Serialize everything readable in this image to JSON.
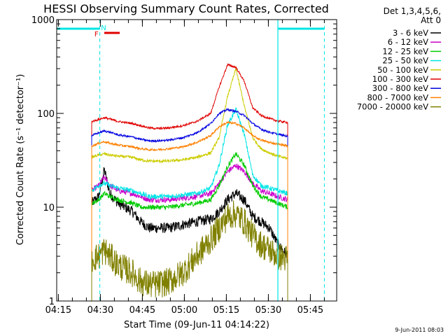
{
  "chart_data": {
    "type": "line",
    "title": "HESSI Observing Summary Count Rates, Corrected",
    "xlabel": "Start Time (09-Jun-11 04:14:22)",
    "ylabel": "Corrected Count Rate (s⁻¹ detector⁻¹)",
    "yscale": "log",
    "ylim": [
      1,
      1000
    ],
    "xlim_minutes": [
      0,
      100
    ],
    "x_tick_labels": [
      "04:15",
      "04:30",
      "04:45",
      "05:00",
      "05:15",
      "05:30",
      "05:45"
    ],
    "x_tick_minutes": [
      0.6,
      15.6,
      30.6,
      45.6,
      60.6,
      75.6,
      90.6
    ],
    "y_tick_labels": [
      "1",
      "10",
      "100",
      "1000"
    ],
    "y_tick_values": [
      1,
      10,
      100,
      1000
    ],
    "legend_header": [
      "Det 1,3,4,5,6,",
      "Att 0"
    ],
    "legend_position": "outside-right",
    "footer_timestamp": "9-Jun-2011 08:03",
    "x_unit": "minutes after 04:14:22",
    "data_start": 12.5,
    "data_end": 82.5,
    "series": [
      {
        "name": "3 - 6 keV",
        "color": "#000000",
        "x": [
          12.5,
          15,
          17,
          19,
          22,
          27,
          30,
          33,
          36,
          40,
          45,
          50,
          55,
          58,
          61,
          64,
          67,
          70,
          73,
          76,
          79,
          82.5
        ],
        "y": [
          11,
          13,
          25,
          14,
          11,
          9,
          7,
          6,
          6,
          6,
          6.5,
          7,
          7.5,
          9,
          12,
          14,
          12,
          8,
          7,
          6,
          4,
          3
        ]
      },
      {
        "name": "6 - 12 keV",
        "color": "#cc00cc",
        "x": [
          12.5,
          15,
          17,
          19,
          22,
          27,
          30,
          33,
          36,
          40,
          45,
          50,
          55,
          58,
          61,
          64,
          67,
          70,
          73,
          76,
          79,
          82.5
        ],
        "y": [
          15,
          17,
          21,
          17,
          15,
          14,
          13,
          12,
          12,
          12,
          12.5,
          13,
          14,
          18,
          24,
          28,
          24,
          18,
          15,
          14,
          13,
          12
        ]
      },
      {
        "name": "12 - 25 keV",
        "color": "#00cc00",
        "x": [
          12.5,
          15,
          17,
          19,
          22,
          27,
          30,
          33,
          36,
          40,
          45,
          50,
          55,
          58,
          61,
          64,
          67,
          70,
          73,
          76,
          79,
          82.5
        ],
        "y": [
          11,
          12,
          14,
          13,
          12,
          11,
          10,
          10,
          10,
          10,
          10.5,
          11,
          12,
          17,
          27,
          37,
          28,
          17,
          13,
          12,
          11,
          10
        ]
      },
      {
        "name": "25 - 50 keV",
        "color": "#00e5e5",
        "x": [
          12.5,
          15,
          17,
          19,
          22,
          27,
          30,
          33,
          36,
          40,
          45,
          50,
          55,
          58,
          61,
          64,
          67,
          70,
          73,
          76,
          79,
          82.5
        ],
        "y": [
          15,
          17,
          18,
          17,
          16,
          15,
          14,
          13,
          13,
          13,
          13.5,
          14,
          16,
          28,
          75,
          110,
          60,
          22,
          17,
          16,
          15,
          14
        ]
      },
      {
        "name": "50 - 100 keV",
        "color": "#cccc00",
        "x": [
          12.5,
          15,
          17,
          19,
          22,
          27,
          30,
          33,
          36,
          40,
          45,
          50,
          55,
          58,
          61,
          64,
          67,
          70,
          73,
          76,
          79,
          82.5
        ],
        "y": [
          34,
          36,
          37,
          36,
          35,
          34,
          32,
          31,
          31,
          31,
          32,
          34,
          38,
          55,
          150,
          300,
          120,
          55,
          42,
          38,
          35,
          33
        ]
      },
      {
        "name": "100 - 300 keV",
        "color": "#e00000",
        "x": [
          12.5,
          15,
          17,
          19,
          22,
          27,
          30,
          33,
          36,
          40,
          45,
          50,
          55,
          58,
          61,
          64,
          67,
          70,
          73,
          76,
          79,
          82.5
        ],
        "y": [
          82,
          86,
          90,
          87,
          82,
          78,
          74,
          70,
          69,
          70,
          74,
          82,
          100,
          190,
          330,
          310,
          220,
          115,
          95,
          88,
          83,
          80
        ]
      },
      {
        "name": "300 - 800 keV",
        "color": "#0000e0",
        "x": [
          12.5,
          15,
          17,
          19,
          22,
          27,
          30,
          33,
          36,
          40,
          45,
          50,
          55,
          58,
          61,
          64,
          67,
          70,
          73,
          76,
          79,
          82.5
        ],
        "y": [
          58,
          62,
          65,
          63,
          59,
          56,
          53,
          51,
          51,
          52,
          55,
          62,
          78,
          100,
          110,
          105,
          95,
          78,
          68,
          63,
          60,
          57
        ]
      },
      {
        "name": "800 - 7000 keV",
        "color": "#ff8000",
        "x": [
          12.5,
          15,
          17,
          19,
          22,
          27,
          30,
          33,
          36,
          40,
          45,
          50,
          55,
          58,
          61,
          64,
          67,
          70,
          73,
          76,
          79,
          82.5
        ],
        "y": [
          45,
          48,
          50,
          48,
          46,
          44,
          42,
          41,
          41,
          42,
          44,
          49,
          58,
          72,
          80,
          78,
          70,
          58,
          52,
          49,
          47,
          45
        ]
      },
      {
        "name": "7000 - 20000 keV",
        "color": "#808000",
        "x": [
          12.5,
          15,
          17,
          19,
          22,
          27,
          30,
          33,
          36,
          40,
          45,
          50,
          55,
          58,
          61,
          64,
          67,
          70,
          73,
          76,
          79,
          82.5
        ],
        "y": [
          2.8,
          3,
          3.5,
          3,
          2.4,
          2,
          1.6,
          1.5,
          1.5,
          1.6,
          2,
          3,
          4.5,
          6,
          8,
          8.5,
          7,
          5,
          4,
          3.5,
          3,
          2.8
        ]
      }
    ],
    "annotations": {
      "markers": [
        {
          "label": "F",
          "color": "#e00000"
        },
        {
          "label": "N",
          "color": "#00e5e5"
        }
      ],
      "night_bar_color": "#00e5e5",
      "flag_bar_color": "#e00000"
    }
  }
}
